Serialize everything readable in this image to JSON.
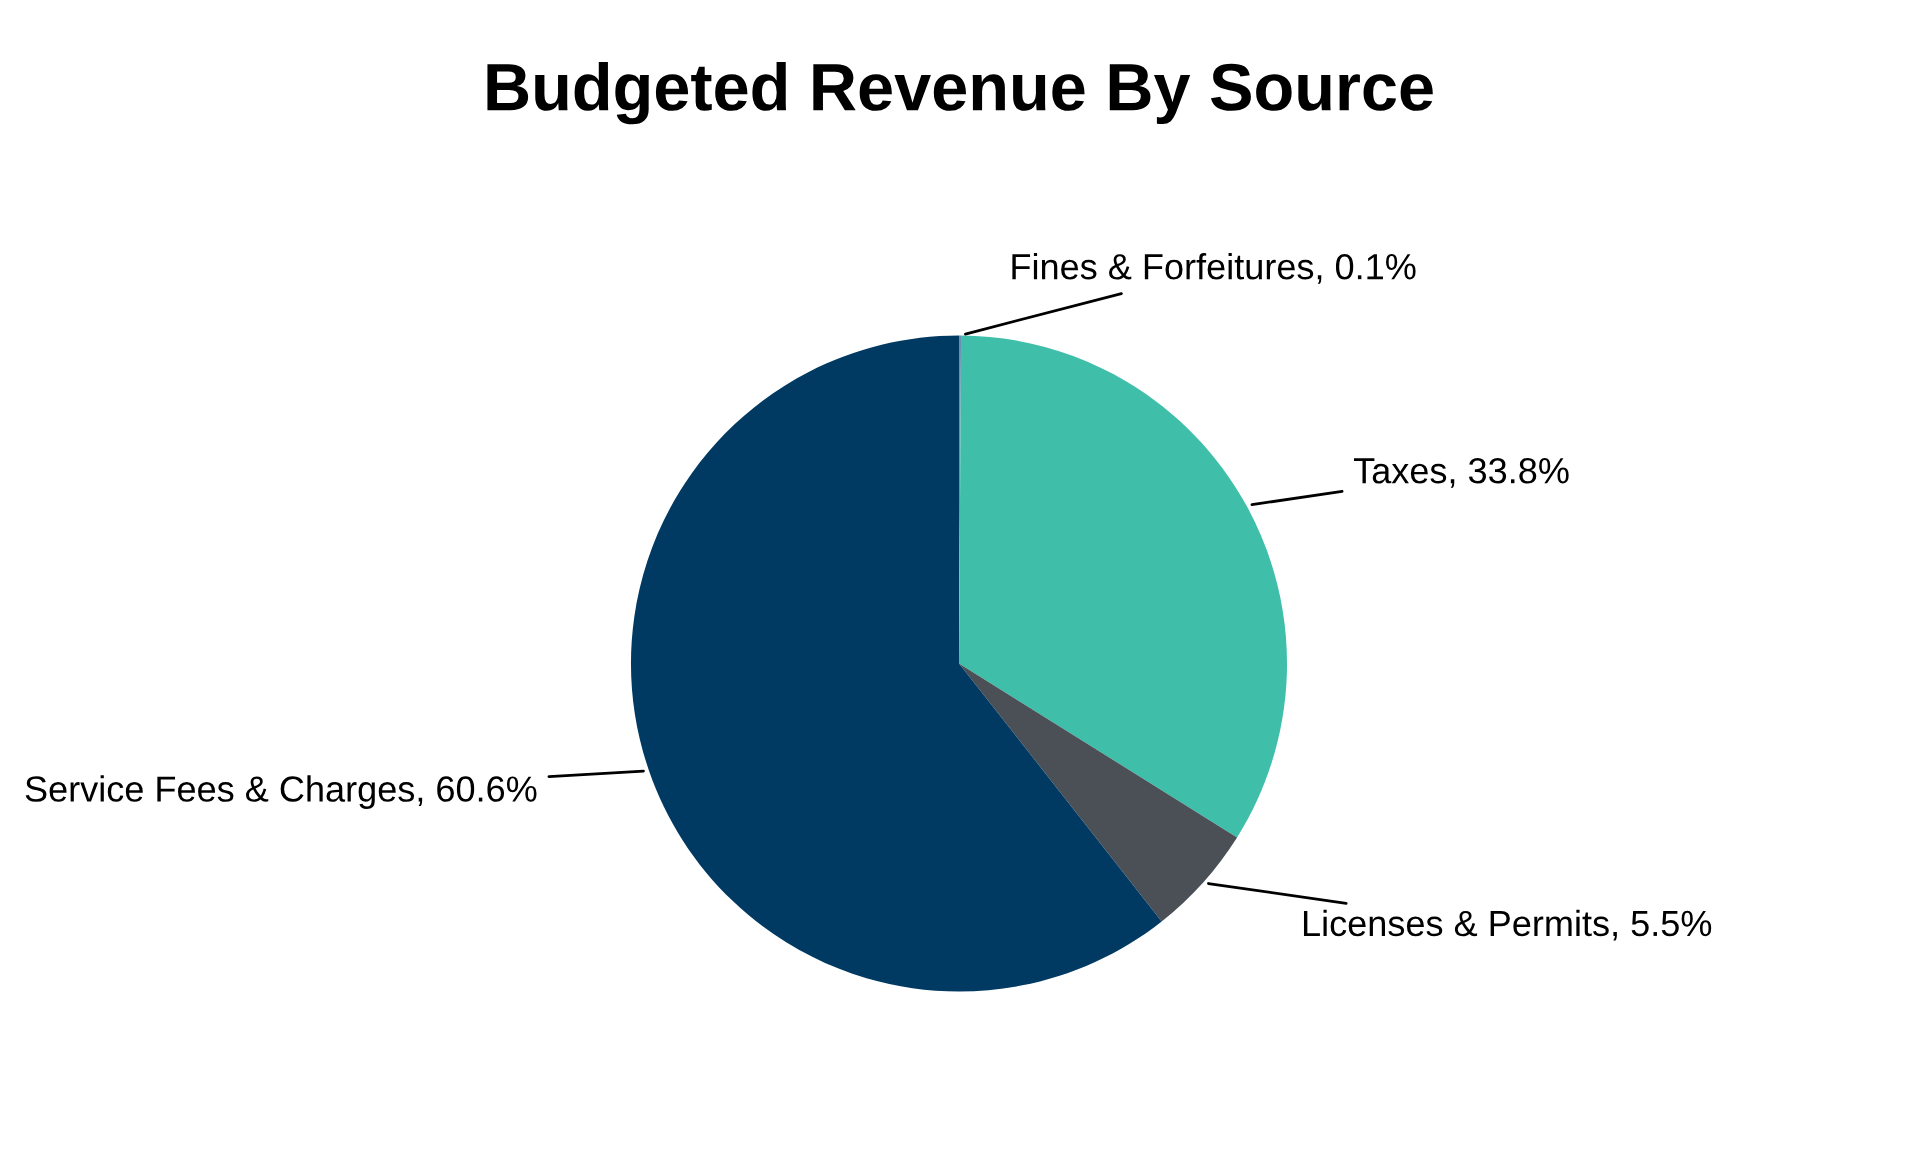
{
  "chart_data": {
    "type": "pie",
    "title": "Budgeted Revenue By Source",
    "categories": [
      "Fines & Forfeitures",
      "Taxes",
      "Licenses & Permits",
      "Service Fees & Charges"
    ],
    "values": [
      0.1,
      33.8,
      5.5,
      60.6
    ],
    "value_labels": [
      "0.1%",
      "33.8%",
      "5.5%",
      "60.6%"
    ],
    "colors": [
      "#6a8fb0",
      "#3fbfaa",
      "#4a5055",
      "#003a63"
    ]
  }
}
